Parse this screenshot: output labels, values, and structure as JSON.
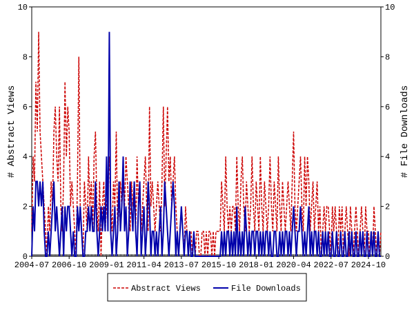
{
  "chart_data": {
    "type": "line",
    "x": [
      "2004-07",
      "2004-08",
      "2004-09",
      "2004-10",
      "2004-11",
      "2004-12",
      "2005-01",
      "2005-02",
      "2005-03",
      "2005-04",
      "2005-05",
      "2005-06",
      "2005-07",
      "2005-08",
      "2005-09",
      "2005-10",
      "2005-11",
      "2005-12",
      "2006-01",
      "2006-02",
      "2006-03",
      "2006-04",
      "2006-05",
      "2006-06",
      "2006-07",
      "2006-08",
      "2006-09",
      "2006-10",
      "2006-11",
      "2006-12",
      "2007-01",
      "2007-02",
      "2007-03",
      "2007-04",
      "2007-05",
      "2007-06",
      "2007-07",
      "2007-08",
      "2007-09",
      "2007-10",
      "2007-11",
      "2007-12",
      "2008-01",
      "2008-02",
      "2008-03",
      "2008-04",
      "2008-05",
      "2008-06",
      "2008-07",
      "2008-08",
      "2008-09",
      "2008-10",
      "2008-11",
      "2008-12",
      "2009-01",
      "2009-02",
      "2009-03",
      "2009-04",
      "2009-05",
      "2009-06",
      "2009-07",
      "2009-08",
      "2009-09",
      "2009-10",
      "2009-11",
      "2009-12",
      "2010-01",
      "2010-02",
      "2010-03",
      "2010-04",
      "2010-05",
      "2010-06",
      "2010-07",
      "2010-08",
      "2010-09",
      "2010-10",
      "2010-11",
      "2010-12",
      "2011-01",
      "2011-02",
      "2011-03",
      "2011-04",
      "2011-05",
      "2011-06",
      "2011-07",
      "2011-08",
      "2011-09",
      "2011-10",
      "2011-11",
      "2011-12",
      "2012-01",
      "2012-02",
      "2012-03",
      "2012-04",
      "2012-05",
      "2012-06",
      "2012-07",
      "2012-08",
      "2012-09",
      "2012-10",
      "2012-11",
      "2012-12",
      "2013-01",
      "2013-02",
      "2013-03",
      "2013-04",
      "2013-05",
      "2013-06",
      "2013-07",
      "2013-08",
      "2013-09",
      "2013-10",
      "2013-11",
      "2013-12",
      "2014-01",
      "2014-02",
      "2014-03",
      "2014-04",
      "2014-05",
      "2014-06",
      "2014-07",
      "2014-08",
      "2014-09",
      "2014-10",
      "2014-11",
      "2014-12",
      "2015-01",
      "2015-02",
      "2015-03",
      "2015-04",
      "2015-05",
      "2015-06",
      "2015-07",
      "2015-08",
      "2015-09",
      "2015-10",
      "2015-11",
      "2015-12",
      "2016-01",
      "2016-02",
      "2016-03",
      "2016-04",
      "2016-05",
      "2016-06",
      "2016-07",
      "2016-08",
      "2016-09",
      "2016-10",
      "2016-11",
      "2016-12",
      "2017-01",
      "2017-02",
      "2017-03",
      "2017-04",
      "2017-05",
      "2017-06",
      "2017-07",
      "2017-08",
      "2017-09",
      "2017-10",
      "2017-11",
      "2017-12",
      "2018-01",
      "2018-02",
      "2018-03",
      "2018-04",
      "2018-05",
      "2018-06",
      "2018-07",
      "2018-08",
      "2018-09",
      "2018-10",
      "2018-11",
      "2018-12",
      "2019-01",
      "2019-02",
      "2019-03",
      "2019-04",
      "2019-05",
      "2019-06",
      "2019-07",
      "2019-08",
      "2019-09",
      "2019-10",
      "2019-11",
      "2019-12",
      "2020-01",
      "2020-02",
      "2020-03",
      "2020-04",
      "2020-05",
      "2020-06",
      "2020-07",
      "2020-08",
      "2020-09",
      "2020-10",
      "2020-11",
      "2020-12",
      "2021-01",
      "2021-02",
      "2021-03",
      "2021-04",
      "2021-05",
      "2021-06",
      "2021-07",
      "2021-08",
      "2021-09",
      "2021-10",
      "2021-11",
      "2021-12",
      "2022-01",
      "2022-02",
      "2022-03",
      "2022-04",
      "2022-05",
      "2022-06",
      "2022-07",
      "2022-08",
      "2022-09",
      "2022-10",
      "2022-11",
      "2022-12",
      "2023-01",
      "2023-02",
      "2023-03",
      "2023-04",
      "2023-05",
      "2023-06",
      "2023-07",
      "2023-08",
      "2023-09",
      "2023-10",
      "2023-11",
      "2023-12",
      "2024-01",
      "2024-02",
      "2024-03",
      "2024-04",
      "2024-05",
      "2024-06",
      "2024-07",
      "2024-08",
      "2024-09",
      "2024-10",
      "2024-11",
      "2024-12",
      "2025-01",
      "2025-02",
      "2025-03",
      "2025-04",
      "2025-05",
      "2025-06",
      "2025-07"
    ],
    "xticks": [
      "2004-07",
      "2006-10",
      "2009-01",
      "2011-04",
      "2013-07",
      "2015-10",
      "2018-01",
      "2020-04",
      "2022-07",
      "2024-10"
    ],
    "ylabel": "# Abstract Views",
    "y2label": "# File Downloads",
    "ylim": [
      0,
      10
    ],
    "yticks": [
      0,
      2,
      4,
      6,
      8,
      10
    ],
    "y2lim": [
      0,
      10
    ],
    "y2ticks": [
      0,
      2,
      4,
      6,
      8,
      10
    ],
    "legend": "bottom",
    "series": [
      {
        "name": "Abstract Views",
        "color": "#cc0000",
        "dashed": true,
        "values": [
          1,
          4,
          3,
          7,
          5,
          9,
          5,
          4,
          3,
          2,
          1,
          0,
          2,
          1,
          3,
          2,
          5,
          6,
          4,
          3,
          6,
          2,
          1,
          3,
          7,
          4,
          6,
          5,
          2,
          3,
          2,
          1,
          0,
          3,
          8,
          2,
          1,
          0,
          3,
          2,
          1,
          4,
          2,
          3,
          1,
          4,
          5,
          2,
          1,
          3,
          0,
          2,
          3,
          1,
          2,
          3,
          4,
          2,
          1,
          3,
          2,
          5,
          1,
          2,
          3,
          2,
          3,
          2,
          4,
          3,
          2,
          1,
          3,
          2,
          3,
          1,
          4,
          2,
          3,
          1,
          2,
          3,
          4,
          2,
          1,
          6,
          2,
          3,
          2,
          1,
          2,
          3,
          2,
          1,
          3,
          6,
          2,
          4,
          6,
          3,
          4,
          2,
          3,
          4,
          2,
          1,
          0,
          1,
          2,
          1,
          0,
          2,
          1,
          0,
          1,
          1,
          0,
          1,
          0,
          1,
          1,
          0,
          0,
          1,
          1,
          0,
          1,
          0,
          1,
          1,
          0,
          1,
          0,
          1,
          1,
          1,
          1,
          3,
          2,
          1,
          4,
          2,
          1,
          2,
          1,
          2,
          2,
          1,
          4,
          2,
          1,
          3,
          4,
          2,
          1,
          3,
          2,
          1,
          2,
          4,
          2,
          1,
          3,
          2,
          1,
          4,
          2,
          1,
          3,
          2,
          1,
          2,
          4,
          2,
          1,
          3,
          2,
          1,
          4,
          2,
          1,
          3,
          2,
          1,
          2,
          3,
          2,
          1,
          3,
          5,
          2,
          1,
          2,
          3,
          4,
          2,
          1,
          4,
          2,
          4,
          3,
          1,
          2,
          3,
          1,
          2,
          3,
          1,
          2,
          0,
          1,
          2,
          1,
          2,
          2,
          1,
          0,
          2,
          1,
          2,
          1,
          0,
          2,
          1,
          2,
          0,
          1,
          2,
          1,
          0,
          2,
          1,
          0,
          1,
          2,
          1,
          0,
          1,
          2,
          1,
          0,
          2,
          1,
          1,
          0,
          1,
          0,
          2,
          1,
          0,
          1,
          0,
          1
        ]
      },
      {
        "name": "File Downloads",
        "color": "#0000aa",
        "axis": "y2",
        "values": [
          0,
          2,
          1,
          3,
          3,
          2,
          3,
          2,
          3,
          1,
          0,
          0,
          1,
          0,
          1,
          2,
          3,
          1,
          2,
          1,
          0,
          1,
          2,
          0,
          2,
          1,
          2,
          2,
          1,
          0,
          1,
          0,
          0,
          2,
          1,
          2,
          1,
          0,
          0,
          1,
          1,
          2,
          1,
          2,
          1,
          1,
          3,
          1,
          0,
          1,
          2,
          1,
          2,
          1,
          4,
          1,
          9,
          1,
          0,
          1,
          2,
          0,
          1,
          3,
          1,
          2,
          4,
          1,
          2,
          0,
          1,
          3,
          2,
          1,
          3,
          1,
          0,
          2,
          3,
          0,
          1,
          2,
          0,
          1,
          3,
          2,
          0,
          1,
          1,
          0,
          1,
          0,
          1,
          2,
          0,
          1,
          3,
          2,
          1,
          0,
          1,
          2,
          3,
          2,
          0,
          1,
          0,
          1,
          2,
          1,
          0,
          1,
          1,
          0,
          1,
          0,
          0,
          1,
          0,
          0,
          0,
          0,
          0,
          0,
          0,
          0,
          0,
          0,
          0,
          0,
          0,
          0,
          0,
          0,
          0,
          0,
          0,
          1,
          0,
          1,
          0,
          1,
          1,
          0,
          1,
          0,
          1,
          0,
          2,
          0,
          1,
          0,
          1,
          0,
          2,
          1,
          0,
          1,
          0,
          1,
          1,
          0,
          1,
          1,
          0,
          1,
          0,
          1,
          0,
          1,
          1,
          0,
          1,
          0,
          0,
          1,
          1,
          0,
          0,
          1,
          0,
          1,
          0,
          1,
          1,
          0,
          1,
          0,
          1,
          2,
          1,
          0,
          1,
          1,
          2,
          1,
          0,
          1,
          0,
          1,
          2,
          0,
          1,
          0,
          1,
          1,
          0,
          1,
          0,
          0,
          1,
          0,
          1,
          0,
          1,
          0,
          0,
          1,
          0,
          0,
          1,
          0,
          0,
          1,
          0,
          0,
          1,
          0,
          0,
          1,
          0,
          1,
          0,
          0,
          1,
          0,
          0,
          1,
          0,
          1,
          0,
          0,
          1,
          0,
          0,
          1,
          0,
          1,
          0,
          0,
          1,
          0,
          0
        ]
      }
    ]
  }
}
